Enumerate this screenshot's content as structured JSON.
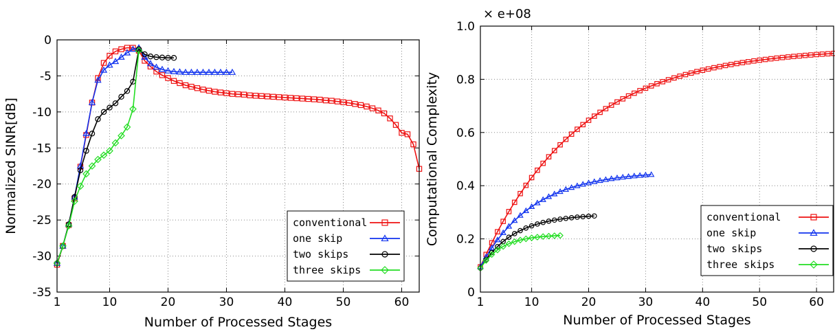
{
  "colors": {
    "conventional": "#ee1111",
    "one_skip": "#1133ee",
    "two_skips": "#000000",
    "three_skips": "#22dd22",
    "grid": "#888888"
  },
  "chart_data": [
    {
      "type": "line",
      "xlabel": "Number of Processed Stages",
      "ylabel": "Normalized SINR[dB]",
      "xlim": [
        1,
        63
      ],
      "ylim": [
        -35,
        0
      ],
      "xticks": [
        1,
        10,
        20,
        30,
        40,
        50,
        60
      ],
      "yticks": [
        0,
        -5,
        -10,
        -15,
        -20,
        -25,
        -30,
        -35
      ],
      "xtick_labels": [
        "1",
        "10",
        "20",
        "30",
        "40",
        "50",
        "60"
      ],
      "ytick_labels": [
        "0",
        "-5",
        "-10",
        "-15",
        "-20",
        "-25",
        "-30",
        "-35"
      ],
      "grid": true,
      "legend_position": "bottom-right",
      "series": [
        {
          "name": "conventional",
          "marker": "square",
          "color_key": "conventional",
          "x": [
            1,
            2,
            3,
            4,
            5,
            6,
            7,
            8,
            9,
            10,
            11,
            12,
            13,
            14,
            15,
            16,
            17,
            18,
            19,
            20,
            21,
            22,
            23,
            24,
            25,
            26,
            27,
            28,
            29,
            30,
            31,
            32,
            33,
            34,
            35,
            36,
            37,
            38,
            39,
            40,
            41,
            42,
            43,
            44,
            45,
            46,
            47,
            48,
            49,
            50,
            51,
            52,
            53,
            54,
            55,
            56,
            57,
            58,
            59,
            60,
            61,
            62,
            63
          ],
          "values": [
            -31.2,
            -28.6,
            -25.7,
            -22.0,
            -17.6,
            -13.2,
            -8.7,
            -5.3,
            -3.2,
            -2.2,
            -1.6,
            -1.3,
            -1.1,
            -1.1,
            -1.5,
            -2.9,
            -3.7,
            -4.4,
            -4.9,
            -5.3,
            -5.7,
            -6.0,
            -6.3,
            -6.5,
            -6.7,
            -6.9,
            -7.05,
            -7.2,
            -7.3,
            -7.4,
            -7.5,
            -7.55,
            -7.6,
            -7.7,
            -7.75,
            -7.8,
            -7.85,
            -7.9,
            -7.95,
            -8.0,
            -8.05,
            -8.1,
            -8.15,
            -8.2,
            -8.25,
            -8.3,
            -8.4,
            -8.45,
            -8.55,
            -8.65,
            -8.75,
            -8.9,
            -9.05,
            -9.25,
            -9.5,
            -9.8,
            -10.2,
            -10.9,
            -11.8,
            -12.9,
            -13.1,
            -14.5,
            -17.9
          ]
        },
        {
          "name": "one skip",
          "marker": "triangle",
          "color_key": "one_skip",
          "x": [
            1,
            2,
            3,
            4,
            5,
            6,
            7,
            8,
            9,
            10,
            11,
            12,
            13,
            14,
            15,
            16,
            17,
            18,
            19,
            20,
            21,
            22,
            23,
            24,
            25,
            26,
            27,
            28,
            29,
            30,
            31
          ],
          "values": [
            -31.0,
            -28.6,
            -25.6,
            -21.8,
            -17.5,
            -13.0,
            -8.7,
            -5.6,
            -4.2,
            -3.5,
            -3.0,
            -2.4,
            -1.8,
            -1.3,
            -1.1,
            -2.4,
            -3.3,
            -3.8,
            -4.1,
            -4.3,
            -4.4,
            -4.45,
            -4.5,
            -4.5,
            -4.5,
            -4.5,
            -4.5,
            -4.5,
            -4.5,
            -4.5,
            -4.5
          ]
        },
        {
          "name": "two skips",
          "marker": "circle",
          "color_key": "two_skips",
          "x": [
            1,
            2,
            3,
            4,
            5,
            6,
            7,
            8,
            9,
            10,
            11,
            12,
            13,
            14,
            15,
            16,
            17,
            18,
            19,
            20,
            21
          ],
          "values": [
            -31.0,
            -28.6,
            -25.6,
            -21.8,
            -18.1,
            -15.4,
            -13.0,
            -11.0,
            -10.0,
            -9.4,
            -8.8,
            -7.9,
            -7.1,
            -5.8,
            -1.3,
            -2.0,
            -2.3,
            -2.4,
            -2.45,
            -2.5,
            -2.5
          ]
        },
        {
          "name": "three skips",
          "marker": "diamond",
          "color_key": "three_skips",
          "x": [
            1,
            2,
            3,
            4,
            5,
            6,
            7,
            8,
            9,
            10,
            11,
            12,
            13,
            14,
            15
          ],
          "values": [
            -31.0,
            -28.6,
            -25.8,
            -22.4,
            -20.3,
            -18.6,
            -17.5,
            -16.6,
            -16.0,
            -15.4,
            -14.3,
            -13.3,
            -12.1,
            -9.6,
            -1.5
          ]
        }
      ]
    },
    {
      "type": "line",
      "xlabel": "Number of Processed Stages",
      "ylabel": "Computational Complexity",
      "y_multiplier": "× e+08",
      "xlim": [
        1,
        63
      ],
      "ylim": [
        0,
        1.0
      ],
      "xticks": [
        1,
        10,
        20,
        30,
        40,
        50,
        60
      ],
      "yticks": [
        0,
        0.2,
        0.4,
        0.6,
        0.8,
        1.0
      ],
      "xtick_labels": [
        "1",
        "10",
        "20",
        "30",
        "40",
        "50",
        "60"
      ],
      "ytick_labels": [
        "0",
        "0.2",
        "0.4",
        "0.6",
        "0.8",
        "1.0"
      ],
      "grid": true,
      "legend_position": "bottom-right",
      "series": [
        {
          "name": "conventional",
          "marker": "square",
          "color_key": "conventional",
          "n": 63,
          "start": 0.095,
          "end": 0.92,
          "k": 0.058
        },
        {
          "name": "one skip",
          "marker": "triangle",
          "color_key": "one_skip",
          "n": 31,
          "start": 0.095,
          "end": 0.455,
          "k": 0.11
        },
        {
          "name": "two skips",
          "marker": "circle",
          "color_key": "two_skips",
          "n": 21,
          "start": 0.09,
          "end": 0.293,
          "k": 0.17
        },
        {
          "name": "three skips",
          "marker": "diamond",
          "color_key": "three_skips",
          "n": 15,
          "start": 0.09,
          "end": 0.216,
          "k": 0.26
        }
      ]
    }
  ]
}
